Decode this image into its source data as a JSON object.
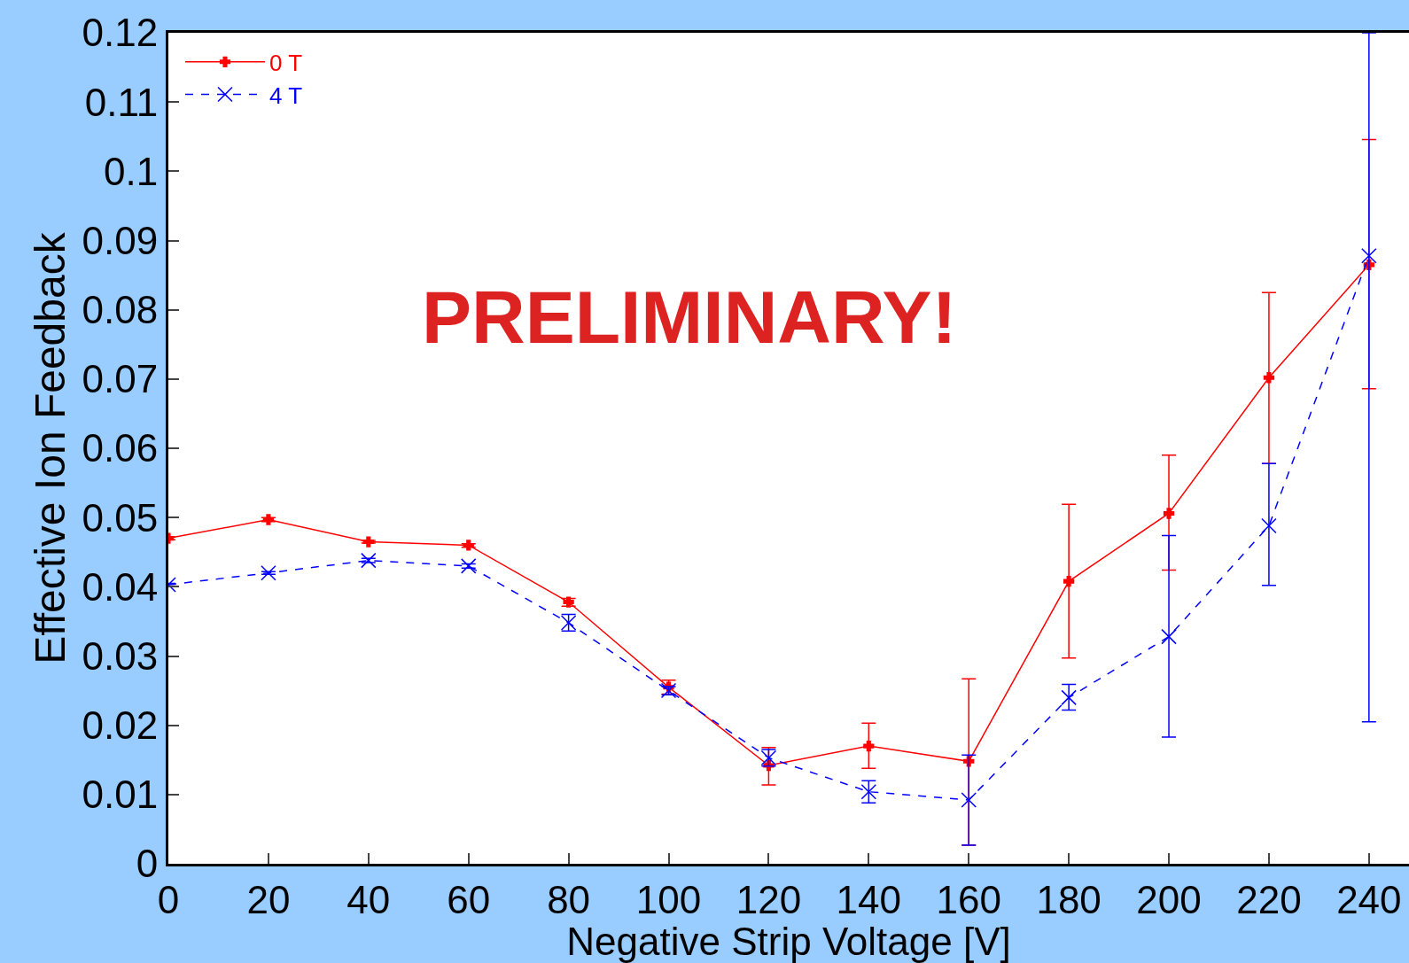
{
  "chart_data": {
    "type": "line",
    "xlabel": "Negative Strip Voltage [V]",
    "ylabel": "Effective Ion Feedback",
    "annotations": [
      "PRELIMINARY!"
    ],
    "x": [
      0,
      20,
      40,
      60,
      80,
      100,
      120,
      140,
      160,
      180,
      200,
      220,
      240
    ],
    "series": [
      {
        "name": "0 T",
        "color": "#ff0000",
        "marker": "cross",
        "line_style": "solid",
        "values": [
          0.047,
          0.0497,
          0.0465,
          0.046,
          0.0378,
          0.0255,
          0.0142,
          0.017,
          0.0148,
          0.0408,
          0.0506,
          0.0702,
          0.0865
        ],
        "errors": [
          [
            0.0468,
            0.0472
          ],
          [
            0.0494,
            0.05
          ],
          [
            0.0463,
            0.0467
          ],
          [
            0.0457,
            0.0462
          ],
          [
            0.0372,
            0.0383
          ],
          [
            0.0245,
            0.0265
          ],
          [
            0.0114,
            0.0168
          ],
          [
            0.0138,
            0.0203
          ],
          [
            0.0027,
            0.0267
          ],
          [
            0.0297,
            0.0519
          ],
          [
            0.0424,
            0.059
          ],
          [
            0.0578,
            0.0825
          ],
          [
            0.0686,
            0.1046
          ]
        ]
      },
      {
        "name": "4 T",
        "color": "#0000ff",
        "marker": "x",
        "line_style": "dashed",
        "values": [
          0.0403,
          0.042,
          0.0438,
          0.043,
          0.0348,
          0.025,
          0.0153,
          0.0104,
          0.0092,
          0.024,
          0.0328,
          0.0488,
          0.0878
        ],
        "errors": [
          [
            0.0401,
            0.0405
          ],
          [
            0.0418,
            0.0422
          ],
          [
            0.0435,
            0.0441
          ],
          [
            0.0427,
            0.0433
          ],
          [
            0.0336,
            0.036
          ],
          [
            0.0244,
            0.0256
          ],
          [
            0.0141,
            0.0165
          ],
          [
            0.0088,
            0.012
          ],
          [
            0.0027,
            0.0157
          ],
          [
            0.0222,
            0.0259
          ],
          [
            0.0183,
            0.0474
          ],
          [
            0.0402,
            0.0578
          ],
          [
            0.0205,
            0.12
          ]
        ]
      }
    ],
    "xlim": [
      0,
      248
    ],
    "xticks": [
      0,
      20,
      40,
      60,
      80,
      100,
      120,
      140,
      160,
      180,
      200,
      220,
      240
    ],
    "ylim": [
      0,
      0.12
    ],
    "yticks": [
      0,
      0.01,
      0.02,
      0.03,
      0.04,
      0.05,
      0.06,
      0.07,
      0.08,
      0.09,
      0.1,
      0.11,
      0.12
    ],
    "grid": false,
    "legend": "top left"
  }
}
